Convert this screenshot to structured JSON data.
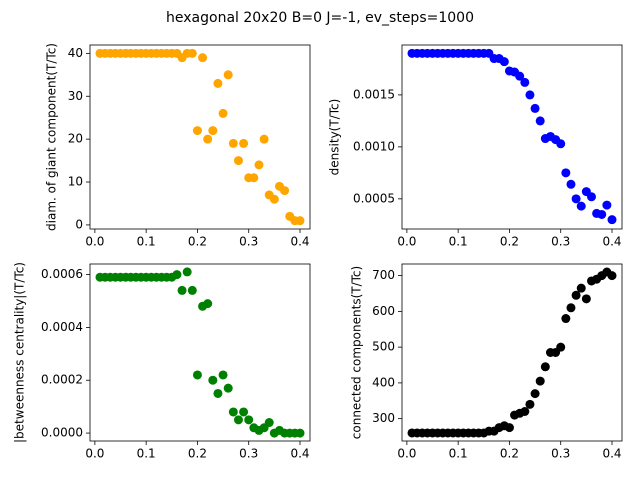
{
  "title": "hexagonal 20x20  B=0 J=-1, ev_steps=1000",
  "chart_data": [
    {
      "type": "scatter",
      "ylabel": "diam. of giant component(T/Tc)",
      "color": "#ffa500",
      "x": [
        0.01,
        0.02,
        0.03,
        0.04,
        0.05,
        0.06,
        0.07,
        0.08,
        0.09,
        0.1,
        0.11,
        0.12,
        0.13,
        0.14,
        0.15,
        0.16,
        0.17,
        0.18,
        0.19,
        0.2,
        0.21,
        0.22,
        0.23,
        0.24,
        0.25,
        0.26,
        0.27,
        0.28,
        0.29,
        0.3,
        0.31,
        0.32,
        0.33,
        0.34,
        0.35,
        0.36,
        0.37,
        0.38,
        0.39,
        0.4
      ],
      "values": [
        40,
        40,
        40,
        40,
        40,
        40,
        40,
        40,
        40,
        40,
        40,
        40,
        40,
        40,
        40,
        40,
        39,
        40,
        40,
        22,
        39,
        20,
        22,
        33,
        26,
        35,
        19,
        15,
        19,
        11,
        11,
        14,
        20,
        7,
        6,
        9,
        8,
        2,
        1,
        1
      ],
      "xlim": [
        -0.0095,
        0.4195
      ],
      "xticks": [
        {
          "value": 0,
          "label": "0.0"
        },
        0.1,
        0.2,
        0.3,
        0.4
      ],
      "ylim": [
        -0.95,
        41.95
      ],
      "yticks": [
        0,
        10,
        20,
        30,
        40
      ]
    },
    {
      "type": "scatter",
      "ylabel": "density(T/Tc)",
      "color": "#0000ff",
      "x": [
        0.01,
        0.02,
        0.03,
        0.04,
        0.05,
        0.06,
        0.07,
        0.08,
        0.09,
        0.1,
        0.11,
        0.12,
        0.13,
        0.14,
        0.15,
        0.16,
        0.17,
        0.18,
        0.19,
        0.2,
        0.21,
        0.22,
        0.23,
        0.24,
        0.25,
        0.26,
        0.27,
        0.28,
        0.29,
        0.3,
        0.31,
        0.32,
        0.33,
        0.34,
        0.35,
        0.36,
        0.37,
        0.38,
        0.39,
        0.4
      ],
      "values": [
        0.0019,
        0.0019,
        0.0019,
        0.0019,
        0.0019,
        0.0019,
        0.0019,
        0.0019,
        0.0019,
        0.0019,
        0.0019,
        0.0019,
        0.0019,
        0.0019,
        0.0019,
        0.0019,
        0.00185,
        0.00185,
        0.00182,
        0.00173,
        0.00172,
        0.00168,
        0.00162,
        0.0015,
        0.00137,
        0.00125,
        0.00108,
        0.0011,
        0.00107,
        0.00103,
        0.00075,
        0.00064,
        0.0005,
        0.00043,
        0.00057,
        0.00052,
        0.00036,
        0.00035,
        0.00044,
        0.0003
      ],
      "xlim": [
        -0.0095,
        0.4195
      ],
      "xticks": [
        {
          "value": 0,
          "label": "0.0"
        },
        0.1,
        0.2,
        0.3,
        0.4
      ],
      "ylim": [
        0.00021,
        0.00198
      ],
      "yticks": [
        0.0005,
        {
          "value": 0.001,
          "label": "0.0010"
        },
        0.0015
      ]
    },
    {
      "type": "scatter",
      "ylabel": "|betweenness centrality|(T/Tc)",
      "color": "#008000",
      "x": [
        0.01,
        0.02,
        0.03,
        0.04,
        0.05,
        0.06,
        0.07,
        0.08,
        0.09,
        0.1,
        0.11,
        0.12,
        0.13,
        0.14,
        0.15,
        0.16,
        0.17,
        0.18,
        0.19,
        0.2,
        0.21,
        0.22,
        0.23,
        0.24,
        0.25,
        0.26,
        0.27,
        0.28,
        0.29,
        0.3,
        0.31,
        0.32,
        0.33,
        0.34,
        0.35,
        0.36,
        0.37,
        0.38,
        0.39,
        0.4
      ],
      "values": [
        0.00059,
        0.00059,
        0.00059,
        0.00059,
        0.00059,
        0.00059,
        0.00059,
        0.00059,
        0.00059,
        0.00059,
        0.00059,
        0.00059,
        0.00059,
        0.00059,
        0.00059,
        0.0006,
        0.00054,
        0.00061,
        0.00054,
        0.00022,
        0.00048,
        0.00049,
        0.0002,
        0.00015,
        0.00022,
        0.00017,
        8e-05,
        5e-05,
        8e-05,
        5e-05,
        2e-05,
        1e-05,
        2e-05,
        4e-05,
        0,
        1e-05,
        0,
        0,
        0,
        0
      ],
      "xlim": [
        -0.0095,
        0.4195
      ],
      "xticks": [
        {
          "value": 0,
          "label": "0.0"
        },
        0.1,
        0.2,
        0.3,
        0.4
      ],
      "ylim": [
        -3e-05,
        0.00064
      ],
      "yticks": [
        {
          "value": 0,
          "label": "0.0000"
        },
        0.0002,
        0.0004,
        0.0006
      ]
    },
    {
      "type": "scatter",
      "ylabel": "connected components(T/Tc)",
      "color": "#000000",
      "x": [
        0.01,
        0.02,
        0.03,
        0.04,
        0.05,
        0.06,
        0.07,
        0.08,
        0.09,
        0.1,
        0.11,
        0.12,
        0.13,
        0.14,
        0.15,
        0.16,
        0.17,
        0.18,
        0.19,
        0.2,
        0.21,
        0.22,
        0.23,
        0.24,
        0.25,
        0.26,
        0.27,
        0.28,
        0.29,
        0.3,
        0.31,
        0.32,
        0.33,
        0.34,
        0.35,
        0.36,
        0.37,
        0.38,
        0.39,
        0.4
      ],
      "values": [
        260,
        260,
        260,
        260,
        260,
        260,
        260,
        260,
        260,
        260,
        260,
        260,
        260,
        260,
        260,
        265,
        265,
        275,
        280,
        275,
        310,
        315,
        320,
        340,
        370,
        405,
        445,
        485,
        485,
        500,
        580,
        610,
        645,
        665,
        635,
        685,
        690,
        700,
        710,
        700
      ],
      "xlim": [
        -0.0095,
        0.4195
      ],
      "xticks": [
        {
          "value": 0,
          "label": "0.0"
        },
        0.1,
        0.2,
        0.3,
        0.4
      ],
      "ylim": [
        237.5,
        732.5
      ],
      "yticks": [
        300,
        400,
        500,
        600,
        700
      ]
    }
  ]
}
